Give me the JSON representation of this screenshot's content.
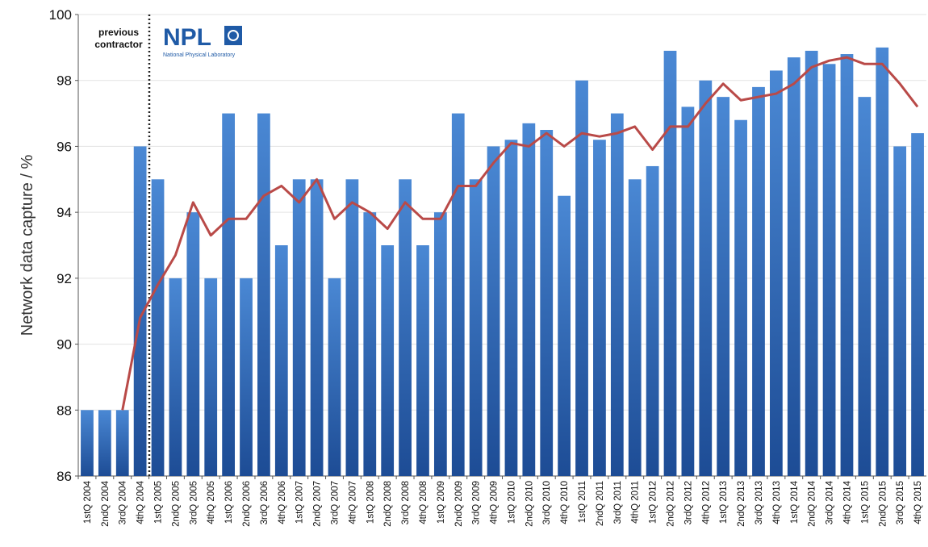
{
  "chart_data": {
    "type": "bar",
    "y_label": "Network data capture / %",
    "annotation_lines": [
      "previous",
      "contractor"
    ],
    "logo_text": "NPL",
    "logo_subtext": "National Physical Laboratory",
    "categories": [
      "1stQ 2004",
      "2ndQ 2004",
      "3rdQ 2004",
      "4thQ 2004",
      "1stQ 2005",
      "2ndQ 2005",
      "3rdQ 2005",
      "4thQ 2005",
      "1stQ 2006",
      "2ndQ 2006",
      "3rdQ 2006",
      "4thQ 2006",
      "1stQ 2007",
      "2ndQ 2007",
      "3rdQ 2007",
      "4thQ 2007",
      "1stQ 2008",
      "2ndQ 2008",
      "3rdQ 2008",
      "4thQ 2008",
      "1stQ 2009",
      "2ndQ 2009",
      "3rdQ 2009",
      "4thQ 2009",
      "1stQ 2010",
      "2ndQ 2010",
      "3rdQ 2010",
      "4thQ 2010",
      "1stQ 2011",
      "2ndQ 2011",
      "3rdQ 2011",
      "4thQ 2011",
      "1stQ 2012",
      "2ndQ 2012",
      "3rdQ 2012",
      "4thQ 2012",
      "1stQ 2013",
      "2ndQ 2013",
      "3rdQ 2013",
      "4thQ 2013",
      "1stQ 2014",
      "2ndQ 2014",
      "3rdQ 2014",
      "4thQ 2014",
      "1stQ 2015",
      "2ndQ 2015",
      "3rdQ 2015",
      "4thQ 2015"
    ],
    "values": [
      88,
      88,
      88,
      96,
      95,
      92,
      94,
      92,
      97,
      92,
      97,
      93,
      95,
      95,
      92,
      95,
      94,
      93,
      95,
      93,
      94,
      97,
      95,
      96,
      96.2,
      96.7,
      96.5,
      94.5,
      98,
      96.2,
      97,
      95,
      95.4,
      98.9,
      97.2,
      98,
      97.5,
      96.8,
      97.8,
      98.3,
      98.7,
      98.9,
      98.5,
      98.8,
      97.5,
      99,
      96,
      96.4
    ],
    "color": "#4a88d4",
    "color_bottom": "#1d4c95",
    "line": {
      "color": "#b94a48",
      "values": [
        null,
        null,
        88,
        90.8,
        91.8,
        92.7,
        94.3,
        93.3,
        93.8,
        93.8,
        94.5,
        94.8,
        94.3,
        95,
        93.8,
        94.3,
        94,
        93.5,
        94.3,
        93.8,
        93.8,
        94.8,
        94.8,
        95.5,
        96.1,
        96,
        96.4,
        96,
        96.4,
        96.3,
        96.4,
        96.6,
        95.9,
        96.6,
        96.6,
        97.3,
        97.9,
        97.4,
        97.5,
        97.6,
        97.9,
        98.4,
        98.6,
        98.7,
        98.5,
        98.5,
        97.9,
        97.2
      ]
    },
    "ylim": [
      86,
      100
    ],
    "yticks": [
      86,
      88,
      90,
      92,
      94,
      96,
      98,
      100
    ],
    "grid": true
  }
}
